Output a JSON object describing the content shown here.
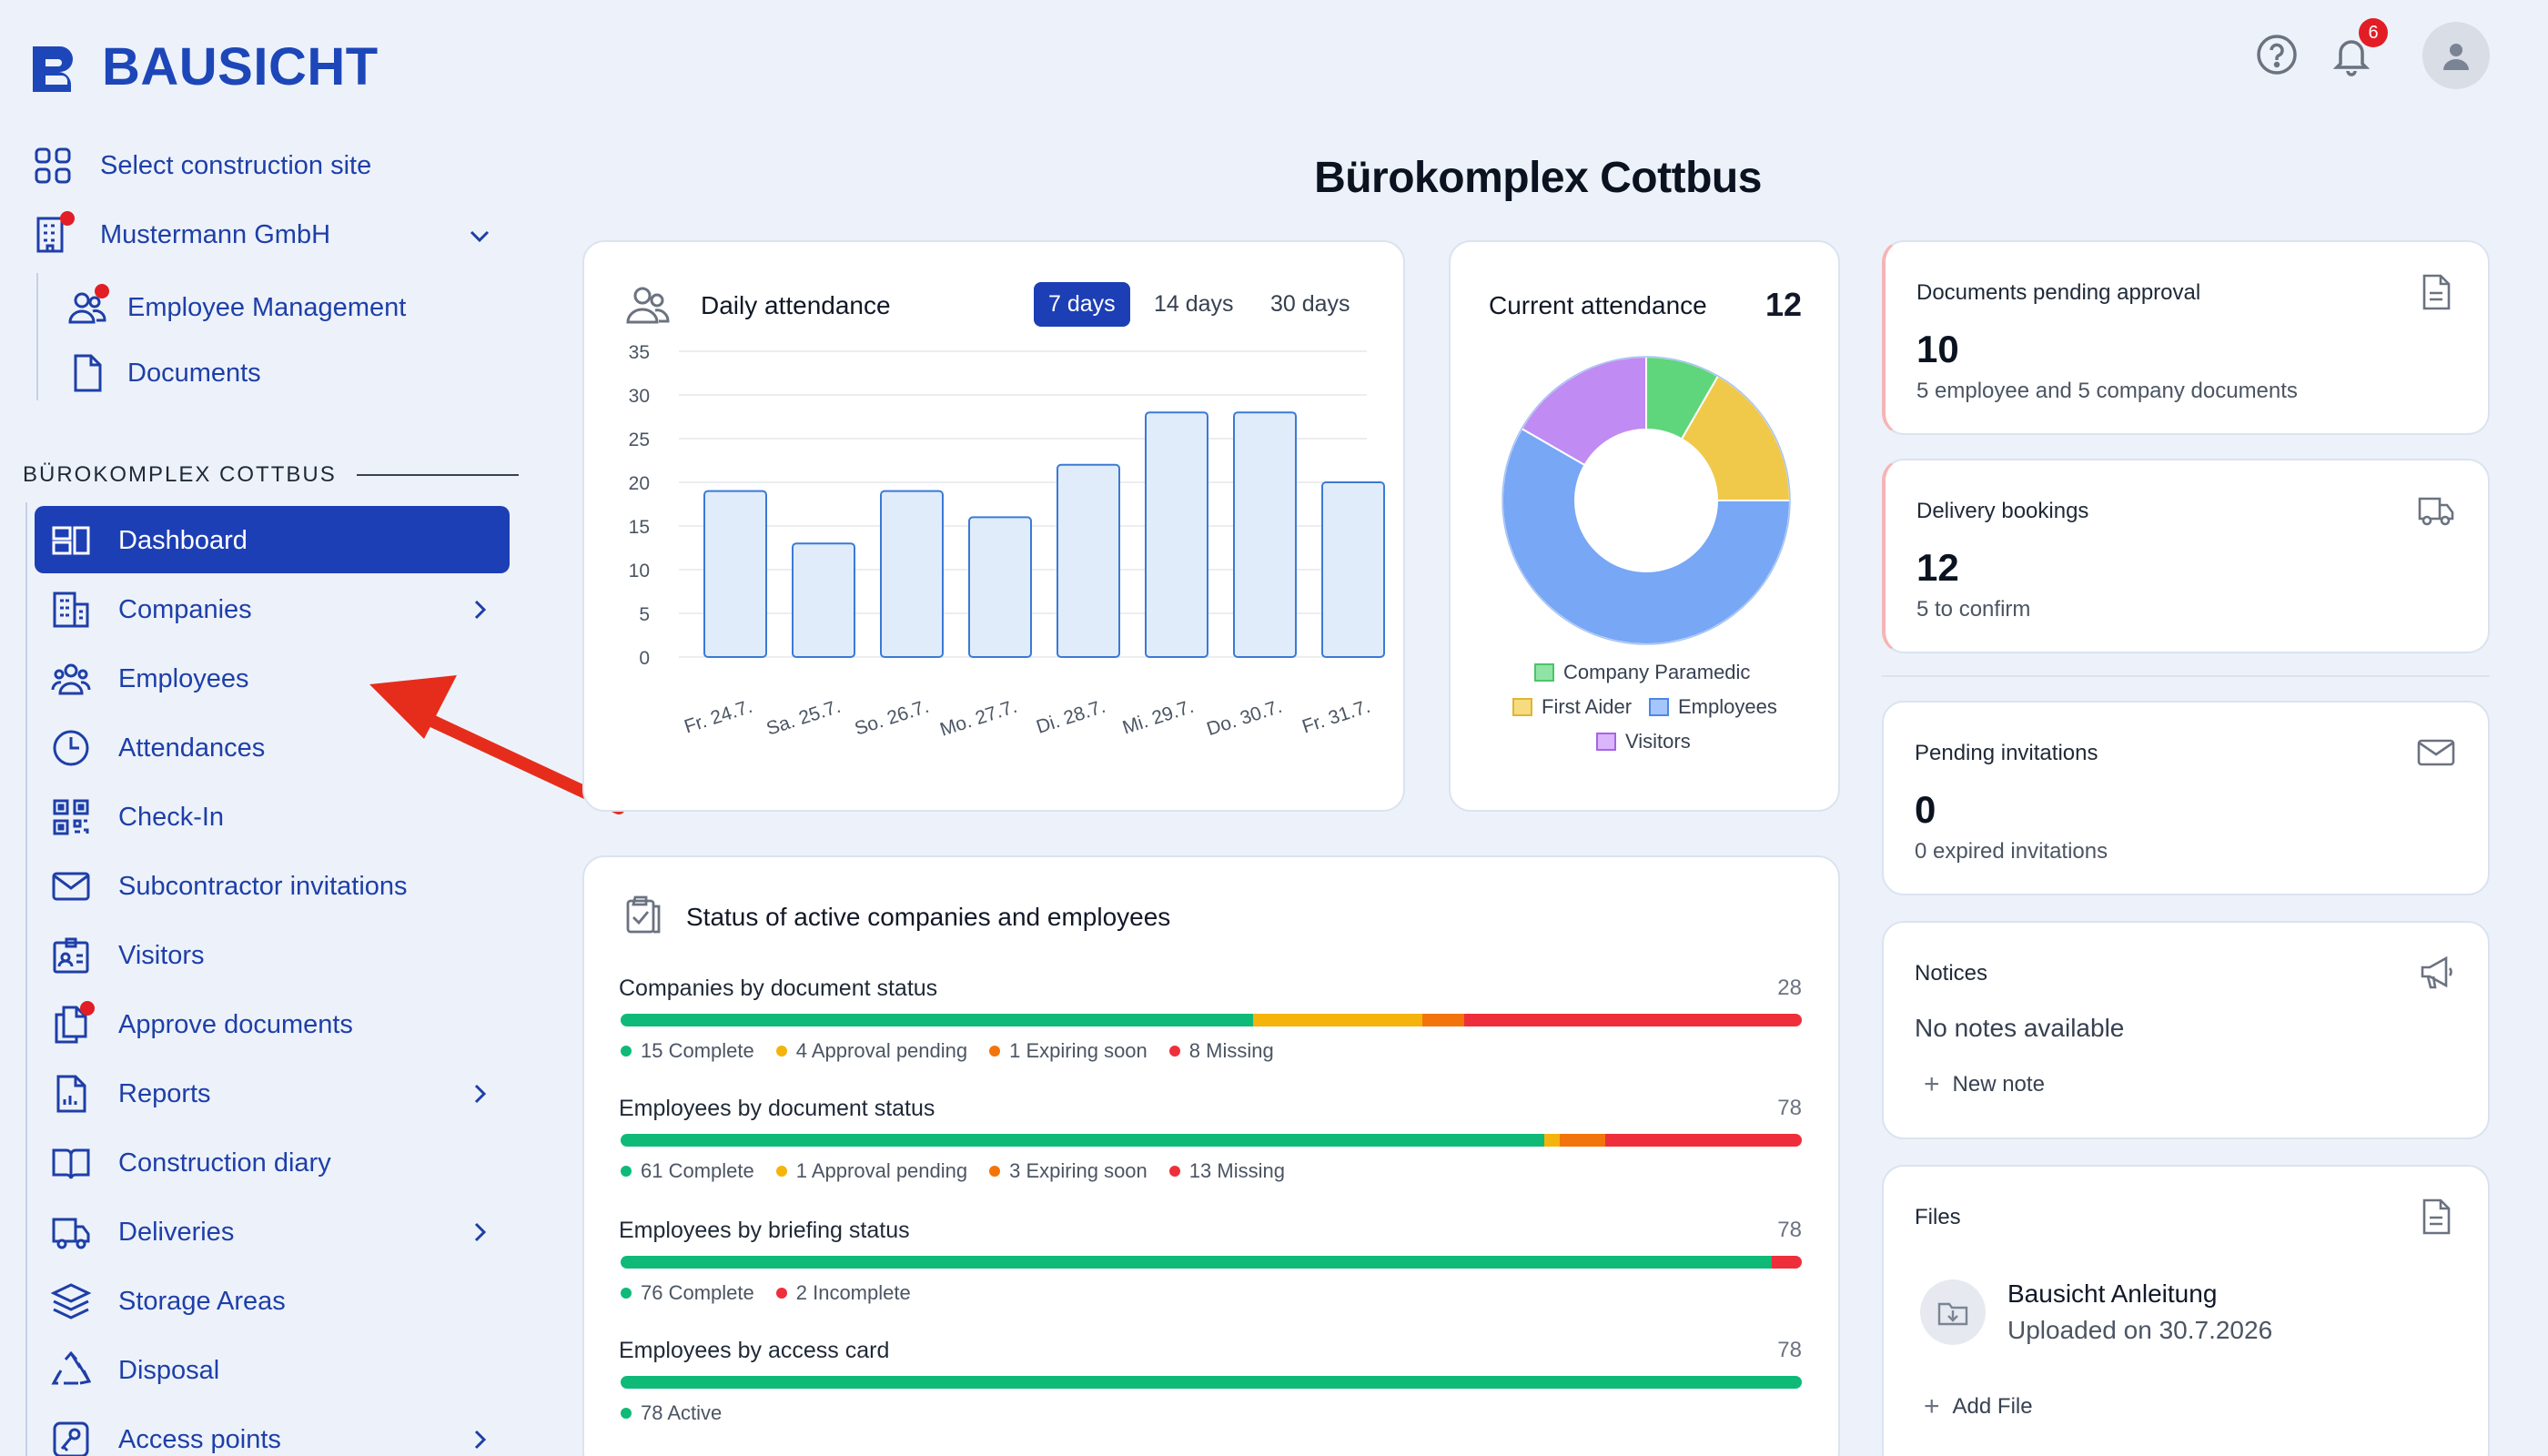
{
  "brand": {
    "name": "BAUSICHT"
  },
  "header": {
    "notification_count": "6"
  },
  "sidebar": {
    "select_site": "Select construction site",
    "company": "Mustermann GmbH",
    "company_items": [
      "Employee Management",
      "Documents"
    ],
    "section_title": "BÜROKOMPLEX COTTBUS",
    "nav": [
      {
        "label": "Dashboard",
        "icon": "dashboard-icon",
        "active": true
      },
      {
        "label": "Companies",
        "icon": "building-icon",
        "chevron": true
      },
      {
        "label": "Employees",
        "icon": "users-icon"
      },
      {
        "label": "Attendances",
        "icon": "clock-icon"
      },
      {
        "label": "Check-In",
        "icon": "qr-icon"
      },
      {
        "label": "Subcontractor invitations",
        "icon": "mail-icon"
      },
      {
        "label": "Visitors",
        "icon": "visitor-badge-icon"
      },
      {
        "label": "Approve documents",
        "icon": "documents-icon",
        "dot": true
      },
      {
        "label": "Reports",
        "icon": "report-icon",
        "chevron": true
      },
      {
        "label": "Construction diary",
        "icon": "book-icon"
      },
      {
        "label": "Deliveries",
        "icon": "truck-icon",
        "chevron": true
      },
      {
        "label": "Storage Areas",
        "icon": "layers-icon"
      },
      {
        "label": "Disposal",
        "icon": "recycle-icon"
      },
      {
        "label": "Access points",
        "icon": "key-icon",
        "chevron": true
      }
    ]
  },
  "page": {
    "title": "Bürokomplex Cottbus"
  },
  "daily_attendance": {
    "title": "Daily attendance",
    "ranges": [
      "7 days",
      "14 days",
      "30 days"
    ],
    "active_range": "7 days"
  },
  "chart_data": [
    {
      "type": "bar",
      "title": "Daily attendance",
      "categories": [
        "Fr. 24.7.",
        "Sa. 25.7.",
        "So. 26.7.",
        "Mo. 27.7.",
        "Di. 28.7.",
        "Mi. 29.7.",
        "Do. 30.7.",
        "Fr. 31.7."
      ],
      "values": [
        19,
        13,
        19,
        16,
        22,
        28,
        28,
        20
      ],
      "ylim": [
        0,
        35
      ],
      "yticks": [
        0,
        5,
        10,
        15,
        20,
        25,
        30,
        35
      ],
      "grid": true
    },
    {
      "type": "pie",
      "title": "Current attendance",
      "total": "12",
      "labels": [
        "Company Paramedic",
        "First Aider",
        "Employees",
        "Visitors"
      ],
      "values": [
        1,
        2,
        7,
        2
      ],
      "colors": [
        "#5fd67c",
        "#f0c94b",
        "#77a7f5",
        "#c08bf3"
      ],
      "legend_position": "bottom"
    }
  ],
  "kpis": [
    {
      "title": "Documents pending approval",
      "value": "10",
      "sub": "5 employee and 5 company documents",
      "icon": "document-icon"
    },
    {
      "title": "Delivery bookings",
      "value": "12",
      "sub": "5 to confirm",
      "icon": "truck-icon"
    },
    {
      "title": "Pending invitations",
      "value": "0",
      "sub": "0 expired invitations",
      "icon": "mail-icon"
    }
  ],
  "notices": {
    "title": "Notices",
    "empty": "No notes available",
    "action": "New note"
  },
  "files": {
    "title": "Files",
    "file_name": "Bausicht Anleitung",
    "file_meta": "Uploaded on 30.7.2026",
    "action": "Add File"
  },
  "status": {
    "title": "Status of active companies and employees",
    "colors": {
      "complete": "#0fba78",
      "pending": "#f4b40c",
      "expiring": "#f2740b",
      "missing": "#ee2f3b"
    },
    "rows": [
      {
        "label": "Companies by document status",
        "total": "28",
        "segments": [
          {
            "name": "Complete",
            "value": 15,
            "color": "#0fba78"
          },
          {
            "name": "Approval pending",
            "value": 4,
            "color": "#f4b40c"
          },
          {
            "name": "Expiring soon",
            "value": 1,
            "color": "#f2740b"
          },
          {
            "name": "Missing",
            "value": 8,
            "color": "#ee2f3b"
          }
        ],
        "legend": [
          "15 Complete",
          "4 Approval pending",
          "1 Expiring soon",
          "8 Missing"
        ]
      },
      {
        "label": "Employees by document status",
        "total": "78",
        "segments": [
          {
            "name": "Complete",
            "value": 61,
            "color": "#0fba78"
          },
          {
            "name": "Approval pending",
            "value": 1,
            "color": "#f4b40c"
          },
          {
            "name": "Expiring soon",
            "value": 3,
            "color": "#f2740b"
          },
          {
            "name": "Missing",
            "value": 13,
            "color": "#ee2f3b"
          }
        ],
        "legend": [
          "61 Complete",
          "1 Approval pending",
          "3 Expiring soon",
          "13 Missing"
        ]
      },
      {
        "label": "Employees by briefing status",
        "total": "78",
        "segments": [
          {
            "name": "Complete",
            "value": 76,
            "color": "#0fba78"
          },
          {
            "name": "Incomplete",
            "value": 2,
            "color": "#ee2f3b"
          }
        ],
        "legend": [
          "76 Complete",
          "2 Incomplete"
        ]
      },
      {
        "label": "Employees by access card",
        "total": "78",
        "segments": [
          {
            "name": "Active",
            "value": 78,
            "color": "#0fba78"
          }
        ],
        "legend": [
          "78 Active"
        ]
      }
    ]
  }
}
